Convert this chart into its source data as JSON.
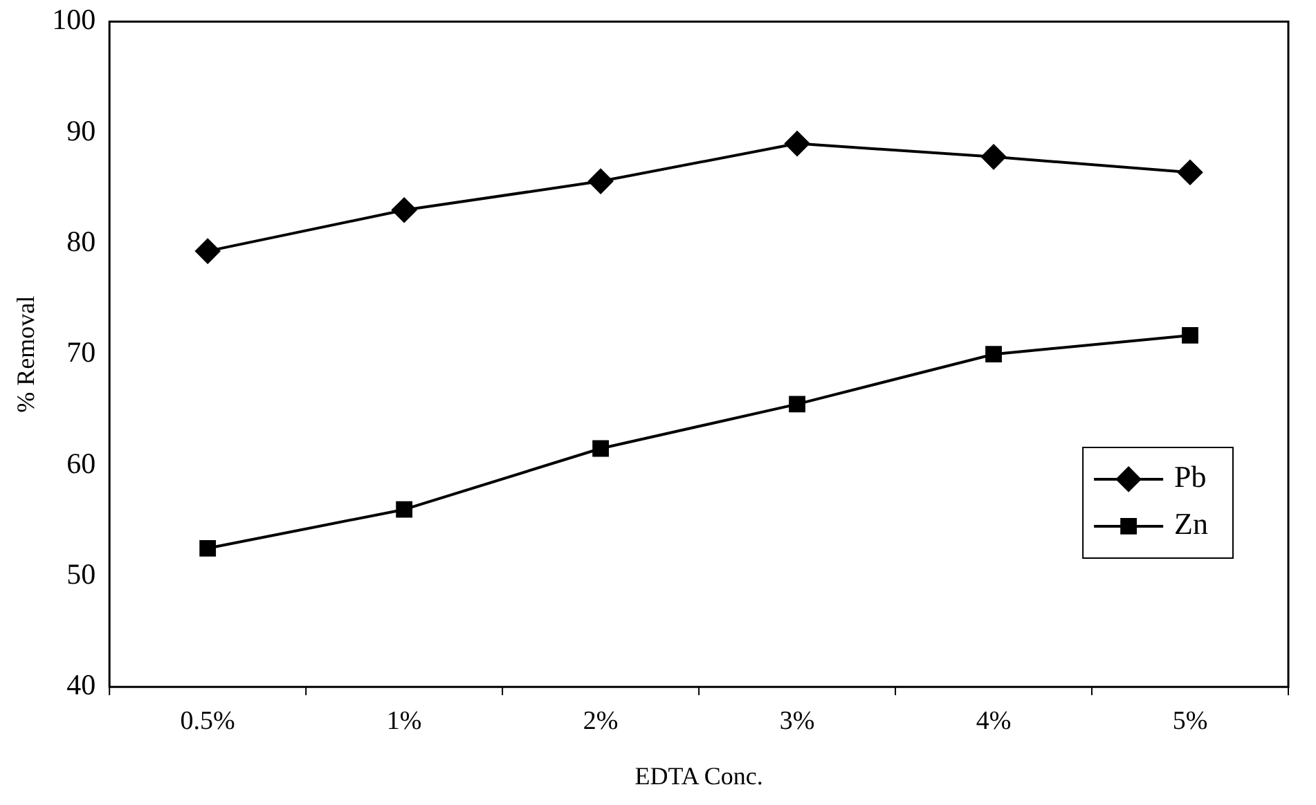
{
  "chart_data": {
    "type": "line",
    "xlabel": "EDTA Conc.",
    "ylabel": "% Removal",
    "categories": [
      "0.5%",
      "1%",
      "2%",
      "3%",
      "4%",
      "5%"
    ],
    "series": [
      {
        "name": "Pb",
        "color": "#000000",
        "marker": "diamond",
        "values": [
          79.3,
          83.0,
          85.6,
          89.0,
          87.8,
          86.4
        ]
      },
      {
        "name": "Zn",
        "color": "#000000",
        "marker": "square",
        "values": [
          52.5,
          56.0,
          61.5,
          65.5,
          70.0,
          71.7
        ]
      }
    ],
    "ylim": [
      40,
      100
    ],
    "yticks": [
      40,
      50,
      60,
      70,
      80,
      90,
      100
    ],
    "grid": false,
    "legend": "right",
    "line_style": "solid"
  }
}
